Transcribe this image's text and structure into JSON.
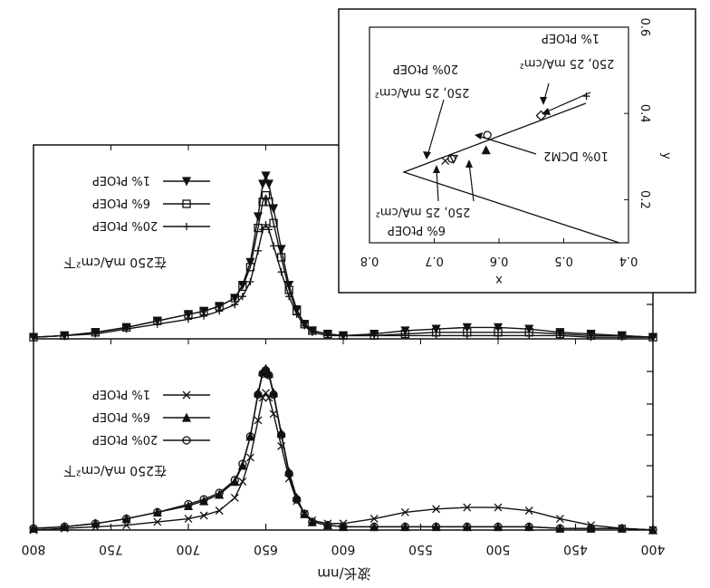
{
  "chart_data": [
    {
      "type": "line",
      "xlabel": "波长/nm",
      "xlim": [
        800,
        400
      ],
      "x_ticks": [
        "800",
        "750",
        "700",
        "650",
        "600",
        "550",
        "500",
        "450",
        "400"
      ],
      "x_tick_values": [
        800,
        750,
        700,
        650,
        600,
        550,
        500,
        450,
        400
      ],
      "ylim": [
        0,
        1.1
      ],
      "annotation": "在250 mA/cm²下",
      "legend_position": "top-left",
      "series": [
        {
          "name": "1% PtOEP",
          "marker": "triangle",
          "x": [
            800,
            780,
            760,
            740,
            720,
            700,
            690,
            680,
            670,
            665,
            660,
            655,
            652,
            650,
            648,
            645,
            640,
            635,
            630,
            625,
            620,
            610,
            600,
            580,
            560,
            540,
            520,
            500,
            480,
            460,
            440,
            420,
            400
          ],
          "y": [
            0.01,
            0.02,
            0.04,
            0.07,
            0.11,
            0.15,
            0.17,
            0.2,
            0.25,
            0.33,
            0.47,
            0.75,
            0.95,
            1.0,
            0.95,
            0.8,
            0.55,
            0.33,
            0.18,
            0.09,
            0.05,
            0.03,
            0.02,
            0.03,
            0.05,
            0.06,
            0.07,
            0.07,
            0.06,
            0.04,
            0.03,
            0.02,
            0.01
          ]
        },
        {
          "name": "6% PtOEP",
          "marker": "square",
          "x": [
            800,
            780,
            760,
            740,
            720,
            700,
            690,
            680,
            670,
            665,
            660,
            655,
            652,
            650,
            648,
            645,
            640,
            635,
            630,
            625,
            620,
            610,
            600,
            580,
            560,
            540,
            520,
            500,
            480,
            460,
            440,
            420,
            400
          ],
          "y": [
            0.01,
            0.02,
            0.04,
            0.07,
            0.11,
            0.15,
            0.17,
            0.2,
            0.25,
            0.32,
            0.44,
            0.68,
            0.84,
            0.88,
            0.84,
            0.71,
            0.5,
            0.3,
            0.17,
            0.09,
            0.05,
            0.03,
            0.02,
            0.02,
            0.03,
            0.04,
            0.04,
            0.04,
            0.04,
            0.03,
            0.02,
            0.02,
            0.01
          ]
        },
        {
          "name": "20% PtOEP",
          "marker": "plus",
          "x": [
            800,
            780,
            760,
            740,
            720,
            700,
            690,
            680,
            670,
            665,
            660,
            655,
            652,
            650,
            648,
            645,
            640,
            635,
            630,
            625,
            620,
            610,
            600,
            580,
            560,
            540,
            520,
            500,
            480,
            460,
            440,
            420,
            400
          ],
          "y": [
            0.01,
            0.02,
            0.03,
            0.06,
            0.09,
            0.12,
            0.14,
            0.17,
            0.21,
            0.26,
            0.35,
            0.54,
            0.67,
            0.7,
            0.67,
            0.57,
            0.41,
            0.26,
            0.15,
            0.08,
            0.04,
            0.02,
            0.02,
            0.02,
            0.02,
            0.02,
            0.02,
            0.02,
            0.02,
            0.02,
            0.01,
            0.01,
            0.01
          ]
        }
      ]
    },
    {
      "type": "line",
      "xlabel": "波长/nm",
      "xlim": [
        800,
        400
      ],
      "ylim": [
        0,
        1.1
      ],
      "annotation": "在250 mA/cm²下",
      "legend_position": "top-left",
      "series": [
        {
          "name": "1% PtOEP",
          "marker": "cross",
          "x": [
            800,
            780,
            760,
            740,
            720,
            700,
            690,
            680,
            670,
            665,
            660,
            655,
            652,
            650,
            648,
            645,
            640,
            635,
            630,
            625,
            620,
            610,
            600,
            580,
            560,
            540,
            520,
            500,
            480,
            460,
            440,
            420,
            400
          ],
          "y": [
            0.0,
            0.01,
            0.02,
            0.03,
            0.05,
            0.07,
            0.09,
            0.12,
            0.2,
            0.3,
            0.45,
            0.68,
            0.82,
            0.85,
            0.82,
            0.72,
            0.52,
            0.32,
            0.18,
            0.1,
            0.06,
            0.04,
            0.04,
            0.07,
            0.11,
            0.13,
            0.14,
            0.14,
            0.12,
            0.07,
            0.03,
            0.01,
            0.0
          ]
        },
        {
          "name": "6% PtOEP",
          "marker": "triangle-down",
          "x": [
            800,
            780,
            760,
            740,
            720,
            700,
            690,
            680,
            670,
            665,
            660,
            655,
            652,
            650,
            648,
            645,
            640,
            635,
            630,
            625,
            620,
            610,
            600,
            580,
            560,
            540,
            520,
            500,
            480,
            460,
            440,
            420,
            400
          ],
          "y": [
            0.01,
            0.02,
            0.04,
            0.07,
            0.11,
            0.15,
            0.18,
            0.22,
            0.3,
            0.4,
            0.58,
            0.85,
            0.98,
            1.0,
            0.97,
            0.85,
            0.6,
            0.36,
            0.2,
            0.1,
            0.05,
            0.03,
            0.02,
            0.02,
            0.02,
            0.02,
            0.02,
            0.02,
            0.02,
            0.01,
            0.01,
            0.01,
            0.0
          ]
        },
        {
          "name": "20% PtOEP",
          "marker": "circle",
          "x": [
            800,
            780,
            760,
            740,
            720,
            700,
            690,
            680,
            670,
            665,
            660,
            655,
            652,
            650,
            648,
            645,
            640,
            635,
            630,
            625,
            620,
            610,
            600,
            580,
            560,
            540,
            520,
            500,
            480,
            460,
            440,
            420,
            400
          ],
          "y": [
            0.01,
            0.02,
            0.04,
            0.07,
            0.11,
            0.16,
            0.19,
            0.23,
            0.31,
            0.41,
            0.58,
            0.84,
            0.97,
            0.99,
            0.96,
            0.84,
            0.59,
            0.35,
            0.19,
            0.1,
            0.05,
            0.03,
            0.02,
            0.02,
            0.02,
            0.02,
            0.02,
            0.02,
            0.02,
            0.01,
            0.01,
            0.01,
            0.0
          ]
        }
      ]
    },
    {
      "type": "scatter",
      "xlabel": "x",
      "ylabel": "y",
      "xlim": [
        0.8,
        0.4
      ],
      "ylim": [
        0.1,
        0.6
      ],
      "x_ticks": [
        "0.8",
        "0.7",
        "0.6",
        "0.5",
        "0.4"
      ],
      "x_tick_values": [
        0.8,
        0.7,
        0.6,
        0.5,
        0.4
      ],
      "y_ticks": [
        "0.2",
        "0.4",
        "0.6"
      ],
      "y_tick_values": [
        0.2,
        0.4,
        0.6
      ],
      "series": [
        {
          "name": "1% PtOEP",
          "label": "1% PtOEP",
          "label2": "250, 25 mA/cm²",
          "points": [
            {
              "x": 0.465,
              "y": 0.44,
              "marker": "plus"
            },
            {
              "x": 0.535,
              "y": 0.395,
              "marker": "diamond"
            }
          ]
        },
        {
          "name": "20% PtOEP",
          "label": "20% PtOEP",
          "label2": "250, 25 mA/cm²",
          "points": [
            {
              "x": 0.683,
              "y": 0.29,
              "marker": "cross"
            },
            {
              "x": 0.673,
              "y": 0.295,
              "marker": "circle"
            }
          ]
        },
        {
          "name": "6% PtOEP",
          "label": "6% PtOEP",
          "label2": "250, 25 mA/cm²",
          "points": [
            {
              "x": 0.67,
              "y": 0.294,
              "marker": "triangle-up"
            },
            {
              "x": 0.62,
              "y": 0.315,
              "marker": "triangle-down"
            }
          ]
        },
        {
          "name": "10% DCM2",
          "label": "10% DCM2",
          "points": [
            {
              "x": 0.618,
              "y": 0.35,
              "marker": "circle"
            }
          ]
        }
      ]
    }
  ]
}
